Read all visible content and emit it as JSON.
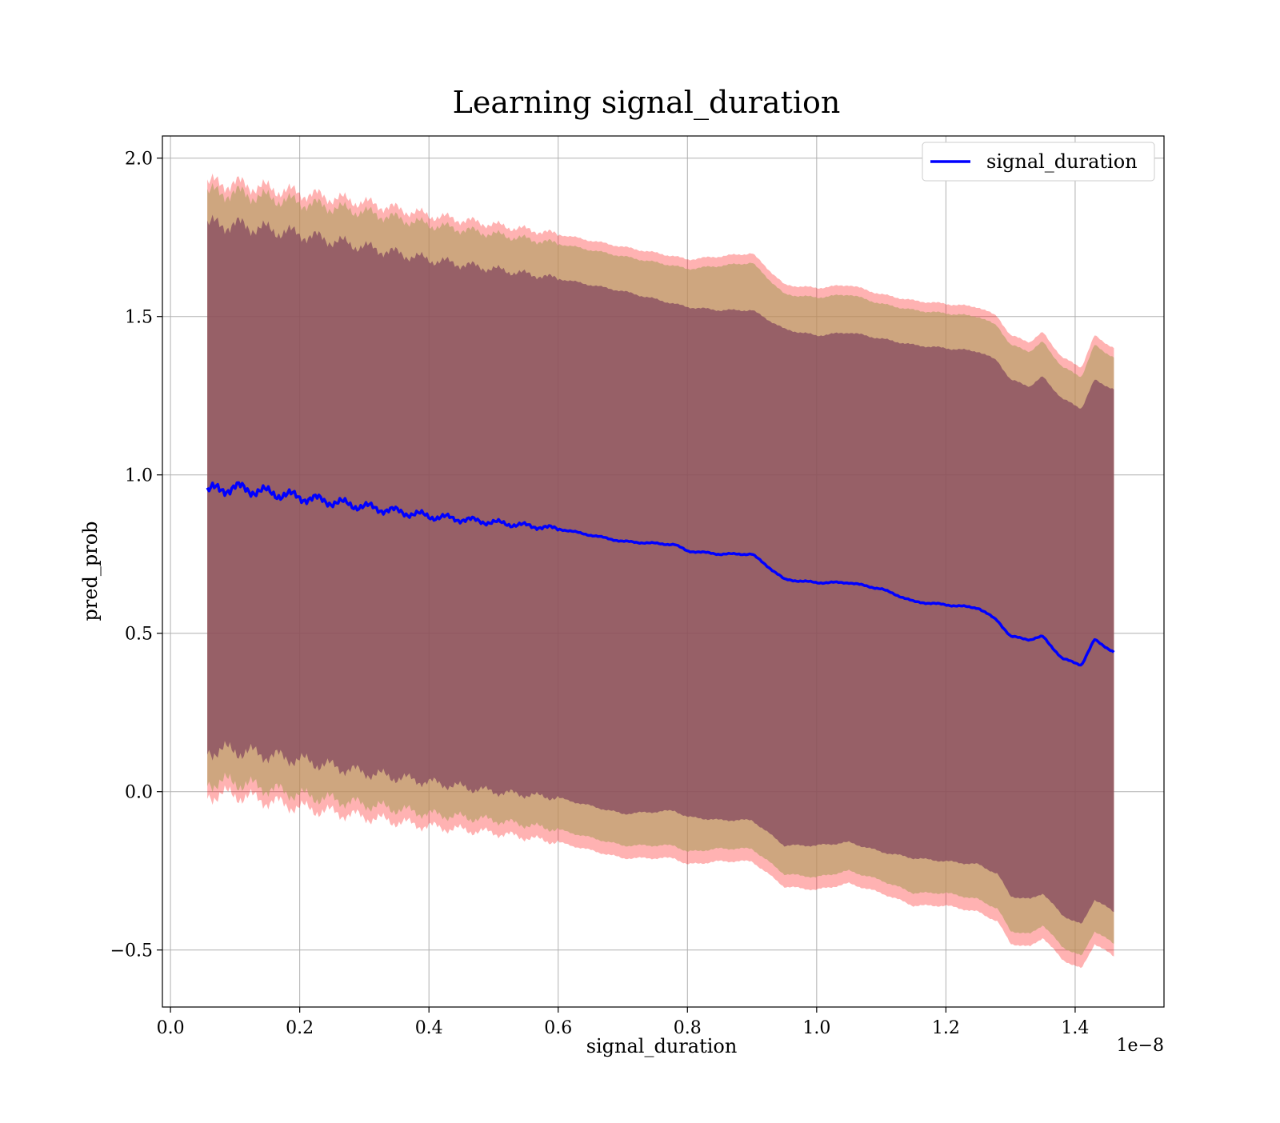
{
  "chart_data": {
    "type": "area",
    "title": "Learning signal_duration",
    "xlabel": "signal_duration",
    "ylabel": "pred_prob",
    "x_offset_label": "1e−8",
    "xlim": [
      -0.0125,
      1.5375
    ],
    "ylim": [
      -0.68,
      2.07
    ],
    "x_ticks": [
      0.0,
      0.2,
      0.4,
      0.6,
      0.8,
      1.0,
      1.2,
      1.4
    ],
    "x_tick_labels": [
      "0.0",
      "0.2",
      "0.4",
      "0.6",
      "0.8",
      "1.0",
      "1.2",
      "1.4"
    ],
    "y_ticks": [
      -0.5,
      0.0,
      0.5,
      1.0,
      1.5,
      2.0
    ],
    "y_tick_labels": [
      "−0.5",
      "0.0",
      "0.5",
      "1.0",
      "1.5",
      "2.0"
    ],
    "grid": true,
    "legend": {
      "position": "top-right",
      "entries": [
        "signal_duration"
      ]
    },
    "x": [
      0.057,
      0.1,
      0.2,
      0.3,
      0.4,
      0.5,
      0.6,
      0.7,
      0.78,
      0.8,
      0.85,
      0.9,
      0.95,
      1.0,
      1.05,
      1.1,
      1.15,
      1.2,
      1.25,
      1.28,
      1.3,
      1.33,
      1.35,
      1.38,
      1.41,
      1.43,
      1.46
    ],
    "series": [
      {
        "name": "signal_duration",
        "color": "#0000ff",
        "values": [
          0.95,
          0.96,
          0.93,
          0.9,
          0.87,
          0.85,
          0.83,
          0.79,
          0.78,
          0.76,
          0.75,
          0.75,
          0.67,
          0.66,
          0.66,
          0.64,
          0.6,
          0.59,
          0.58,
          0.54,
          0.49,
          0.48,
          0.49,
          0.42,
          0.4,
          0.48,
          0.44
        ]
      }
    ],
    "bands": [
      {
        "color": "#ff0000",
        "opacity": 0.3,
        "upper": [
          1.92,
          1.92,
          1.89,
          1.86,
          1.82,
          1.79,
          1.76,
          1.72,
          1.69,
          1.68,
          1.69,
          1.7,
          1.6,
          1.59,
          1.6,
          1.57,
          1.55,
          1.54,
          1.53,
          1.5,
          1.44,
          1.42,
          1.45,
          1.37,
          1.34,
          1.44,
          1.4
        ],
        "lower": [
          -0.01,
          -0.01,
          -0.05,
          -0.08,
          -0.11,
          -0.13,
          -0.16,
          -0.21,
          -0.21,
          -0.23,
          -0.22,
          -0.22,
          -0.3,
          -0.31,
          -0.29,
          -0.32,
          -0.36,
          -0.36,
          -0.38,
          -0.41,
          -0.48,
          -0.49,
          -0.46,
          -0.53,
          -0.56,
          -0.48,
          -0.52
        ]
      },
      {
        "color": "#b4a064",
        "opacity": 0.65,
        "upper": [
          1.89,
          1.89,
          1.86,
          1.83,
          1.79,
          1.76,
          1.73,
          1.69,
          1.66,
          1.65,
          1.66,
          1.67,
          1.57,
          1.56,
          1.57,
          1.54,
          1.52,
          1.51,
          1.5,
          1.47,
          1.41,
          1.39,
          1.42,
          1.34,
          1.31,
          1.41,
          1.37
        ],
        "lower": [
          0.03,
          0.03,
          -0.01,
          -0.04,
          -0.07,
          -0.09,
          -0.12,
          -0.17,
          -0.17,
          -0.19,
          -0.18,
          -0.18,
          -0.26,
          -0.27,
          -0.25,
          -0.28,
          -0.32,
          -0.32,
          -0.34,
          -0.37,
          -0.44,
          -0.45,
          -0.42,
          -0.49,
          -0.52,
          -0.44,
          -0.48
        ]
      },
      {
        "color": "#7a3b5a",
        "opacity": 0.65,
        "upper": [
          1.79,
          1.79,
          1.76,
          1.72,
          1.68,
          1.65,
          1.62,
          1.58,
          1.54,
          1.53,
          1.52,
          1.52,
          1.46,
          1.44,
          1.45,
          1.43,
          1.41,
          1.4,
          1.39,
          1.36,
          1.3,
          1.28,
          1.31,
          1.24,
          1.21,
          1.3,
          1.27
        ],
        "lower": [
          0.13,
          0.13,
          0.1,
          0.06,
          0.03,
          0.0,
          -0.02,
          -0.07,
          -0.06,
          -0.08,
          -0.09,
          -0.09,
          -0.17,
          -0.17,
          -0.16,
          -0.19,
          -0.21,
          -0.22,
          -0.23,
          -0.26,
          -0.33,
          -0.34,
          -0.32,
          -0.39,
          -0.42,
          -0.34,
          -0.38
        ]
      }
    ]
  }
}
